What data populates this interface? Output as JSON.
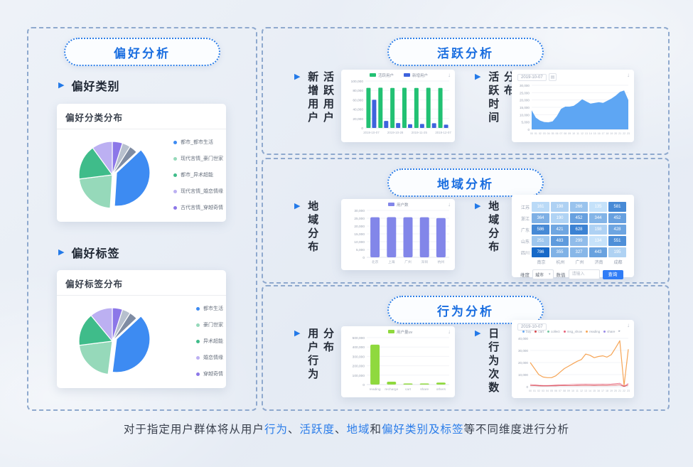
{
  "panels": {
    "preference": {
      "title": "偏好分析",
      "sections": [
        {
          "header": "偏好类别",
          "card_title": "偏好分类分布"
        },
        {
          "header": "偏好标签",
          "card_title": "偏好标签分布"
        }
      ]
    },
    "active": {
      "title": "活跃分析",
      "labels": [
        [
          "新增用户",
          "活跃用户"
        ],
        [
          "活跃时间",
          "分布"
        ]
      ]
    },
    "region": {
      "title": "地域分析",
      "labels": [
        [
          "地域分布"
        ],
        [
          "地域分布"
        ]
      ],
      "filter": {
        "dim_label": "维度",
        "dim_value": "城市",
        "range_label": "数值",
        "range_placeholder": "请输入",
        "search_button": "查询"
      }
    },
    "behavior": {
      "title": "行为分析",
      "labels": [
        [
          "用户行为",
          "分布"
        ],
        [
          "日行为次数"
        ]
      ]
    }
  },
  "caption": {
    "segments": [
      {
        "text": "对于指定用户群体将从用户",
        "hl": false
      },
      {
        "text": "行为",
        "hl": true
      },
      {
        "text": "、",
        "hl": false
      },
      {
        "text": "活跃度",
        "hl": true
      },
      {
        "text": "、",
        "hl": false
      },
      {
        "text": "地域",
        "hl": true
      },
      {
        "text": "和",
        "hl": false
      },
      {
        "text": "偏好类别及标签",
        "hl": true
      },
      {
        "text": "等不同维度进行分析",
        "hl": false
      }
    ]
  },
  "colors": {
    "accent_blue": "#2B7DE9",
    "panel_border": "#8FA9CE",
    "pill_text": "#1A6EE0"
  },
  "chart_data": [
    {
      "id": "pie1",
      "type": "pie",
      "title": "偏好分类分布",
      "slices": [
        {
          "label": "古代言情_穿越奇情",
          "value": 5,
          "color": "#8C77E8"
        },
        {
          "label": "",
          "value": 4,
          "color": "#B7C0CE"
        },
        {
          "label": "",
          "value": 4,
          "color": "#7F8CA3"
        },
        {
          "label": "都市_都市生活",
          "value": 38,
          "color": "#3D8BF2"
        },
        {
          "label": "现代言情_豪门世家",
          "value": 22,
          "color": "#96D9BA"
        },
        {
          "label": "都市_异术超能",
          "value": 17,
          "color": "#3FBC8A"
        },
        {
          "label": "现代言情_婚恋情缘",
          "value": 10,
          "color": "#BCB0F2"
        }
      ],
      "explode_index": 3,
      "legend": [
        "都市_都市生活",
        "现代言情_豪门世家",
        "都市_异术超能",
        "现代言情_婚恋情缘",
        "古代言情_穿越奇情"
      ]
    },
    {
      "id": "pie2",
      "type": "pie",
      "title": "偏好标签分布",
      "slices": [
        {
          "label": "穿越奇情",
          "value": 5,
          "color": "#8C77E8"
        },
        {
          "label": "",
          "value": 4,
          "color": "#B7C0CE"
        },
        {
          "label": "",
          "value": 4,
          "color": "#7F8CA3"
        },
        {
          "label": "都市生活",
          "value": 39,
          "color": "#3D8BF2"
        },
        {
          "label": "豪门世家",
          "value": 21,
          "color": "#96D9BA"
        },
        {
          "label": "异术超能",
          "value": 16,
          "color": "#3FBC8A"
        },
        {
          "label": "婚恋情缘",
          "value": 11,
          "color": "#BCB0F2"
        }
      ],
      "explode_index": 3,
      "legend": [
        "都市生活",
        "豪门世家",
        "异术超能",
        "婚恋情缘",
        "穿越奇情"
      ]
    },
    {
      "id": "bar_active",
      "type": "grouped_bar",
      "title": "新增用户/活跃用户",
      "categories": [
        "2019-10-07",
        "",
        "2019-10-28",
        "",
        "2019-11-25",
        "",
        "2019-12-07"
      ],
      "series": [
        {
          "name": "活跃用户",
          "color": "#22C173",
          "values": [
            85500,
            85800,
            85200,
            85600,
            85300,
            85700,
            85200
          ]
        },
        {
          "name": "新增用户",
          "color": "#3E63DD",
          "values": [
            60000,
            15000,
            10500,
            8000,
            8500,
            10000,
            7000
          ]
        }
      ],
      "ymax": 100000,
      "yticks": [
        0,
        20000,
        40000,
        60000,
        80000,
        100000
      ]
    },
    {
      "id": "area_time",
      "type": "area",
      "title": "活跃时间分布",
      "date": "2019-10-07",
      "color": "#55A1F2",
      "x": [
        "00",
        "01",
        "02",
        "03",
        "04",
        "05",
        "06",
        "07",
        "08",
        "09",
        "10",
        "11",
        "12",
        "13",
        "14",
        "15",
        "16",
        "17",
        "18",
        "19",
        "20",
        "21",
        "22",
        "23"
      ],
      "values": [
        13000,
        8000,
        6000,
        5000,
        4800,
        5500,
        9000,
        14000,
        15500,
        15500,
        16000,
        18000,
        20500,
        19000,
        17500,
        18000,
        18500,
        18000,
        19500,
        21000,
        23000,
        25500,
        26500,
        20000
      ],
      "ymax": 30000,
      "yticks": [
        0,
        5000,
        10000,
        15000,
        20000,
        25000,
        30000
      ]
    },
    {
      "id": "bar_region",
      "type": "bar",
      "title": "地域分布",
      "legend": "用户数",
      "color": "#8286E9",
      "categories": [
        "北京",
        "上海",
        "广州",
        "深圳",
        "杭州"
      ],
      "values": [
        25600,
        25700,
        25650,
        25600,
        25100
      ],
      "ymax": 30000,
      "yticks": [
        0,
        5000,
        10000,
        15000,
        20000,
        25000,
        30000
      ]
    },
    {
      "id": "heatmap_region",
      "type": "heatmap",
      "title": "地域分布",
      "rows": [
        "江苏",
        "浙江",
        "广东",
        "山东",
        "四川"
      ],
      "cols": [
        "南京",
        "杭州",
        "广州",
        "济南",
        "成都"
      ],
      "values": [
        [
          161,
          198,
          266,
          135,
          581
        ],
        [
          364,
          190,
          452,
          344,
          452
        ],
        [
          586,
          421,
          628,
          198,
          428
        ],
        [
          251,
          483,
          299,
          134,
          551
        ],
        [
          786,
          355,
          327,
          443,
          195
        ]
      ],
      "min_color": "#C6E2FA",
      "max_color": "#1769C8"
    },
    {
      "id": "bar_behavior",
      "type": "bar",
      "title": "用户行为分布",
      "legend": "用户量uv",
      "color": "#8FD93E",
      "categories": [
        "reading",
        "recharge",
        "cart",
        "share",
        "others"
      ],
      "values": [
        425000,
        30000,
        4000,
        2500,
        21000
      ],
      "ymax": 500000,
      "yticks": [
        0,
        100000,
        200000,
        300000,
        400000,
        500000
      ]
    },
    {
      "id": "line_behavior",
      "type": "line",
      "title": "日行为次数",
      "date": "2019-10-07",
      "x": [
        "00",
        "01",
        "02",
        "03",
        "04",
        "05",
        "06",
        "07",
        "08",
        "09",
        "10",
        "11",
        "12",
        "13",
        "14",
        "15",
        "16",
        "17",
        "18",
        "19",
        "20",
        "21",
        "22",
        "23"
      ],
      "legend": [
        {
          "name": "buy",
          "color": "#6AA9F0"
        },
        {
          "name": "cart",
          "color": "#D6494F"
        },
        {
          "name": "collect",
          "color": "#74C8A3"
        },
        {
          "name": "msg_show",
          "color": "#E8647C"
        },
        {
          "name": "reading",
          "color": "#F6A556"
        },
        {
          "name": "share",
          "color": "#9B8CE8"
        }
      ],
      "series": [
        {
          "name": "reading",
          "color": "#F6A556",
          "values": [
            20000,
            15000,
            10000,
            8000,
            7500,
            7500,
            9000,
            12000,
            15000,
            17000,
            19000,
            21000,
            22500,
            27000,
            26000,
            24000,
            25000,
            25500,
            24500,
            26500,
            32000,
            38000,
            800,
            31000
          ]
        },
        {
          "name": "msg_show",
          "color": "#E8647C",
          "values": [
            1800,
            1500,
            1200,
            1000,
            1000,
            1100,
            1300,
            1500,
            1600,
            1700,
            1800,
            1900,
            2000,
            2100,
            2000,
            1900,
            2000,
            2100,
            2000,
            2200,
            2500,
            2800,
            400,
            2600
          ]
        },
        {
          "name": "cart",
          "color": "#D6494F",
          "values": [
            900,
            800,
            700,
            600,
            600,
            650,
            700,
            800,
            850,
            900,
            950,
            1000,
            1050,
            1100,
            1050,
            1000,
            1050,
            1100,
            1050,
            1150,
            1300,
            1500,
            200,
            1400
          ]
        }
      ],
      "ymax": 40000,
      "yticks": [
        0,
        10000,
        20000,
        30000,
        40000
      ]
    }
  ]
}
